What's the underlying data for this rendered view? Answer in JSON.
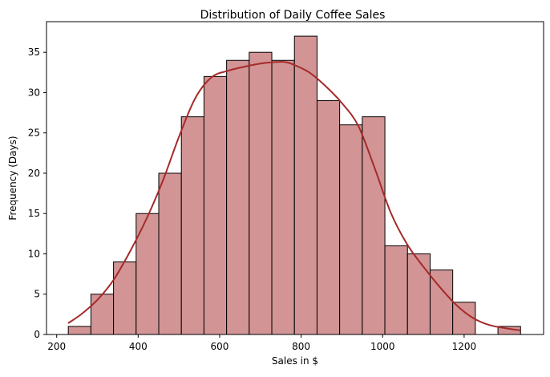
{
  "chart_data": {
    "type": "bar",
    "subtype": "histogram",
    "title": "Distribution of Daily Coffee Sales",
    "xlabel": "Sales in $",
    "ylabel": "Frequency (Days)",
    "xlim": [
      175,
      1395
    ],
    "ylim": [
      0,
      38.8
    ],
    "xticks": [
      200,
      400,
      600,
      800,
      1000,
      1200
    ],
    "yticks": [
      0,
      5,
      10,
      15,
      20,
      25,
      30,
      35
    ],
    "bin_edges": [
      228.5,
      284.0,
      339.5,
      395.0,
      450.5,
      506.0,
      561.5,
      617.0,
      672.5,
      728.0,
      783.5,
      839.0,
      894.5,
      950.0,
      1005.5,
      1061.0,
      1116.5,
      1172.0,
      1227.5,
      1283.0,
      1338.5
    ],
    "counts": [
      1,
      5,
      9,
      15,
      20,
      27,
      32,
      34,
      35,
      34,
      37,
      29,
      26,
      27,
      11,
      10,
      8,
      4,
      0,
      1
    ],
    "kde_curve": {
      "x": [
        228,
        260,
        300,
        340,
        380,
        420,
        460,
        500,
        540,
        580,
        620,
        660,
        700,
        740,
        760,
        780,
        820,
        860,
        900,
        940,
        980,
        1020,
        1060,
        1100,
        1140,
        1180,
        1220,
        1260,
        1300,
        1338
      ],
      "y": [
        1.4,
        2.5,
        4.3,
        6.8,
        10.3,
        14.3,
        19.0,
        24.5,
        29.3,
        31.9,
        32.7,
        33.2,
        33.6,
        33.8,
        33.8,
        33.5,
        32.5,
        30.8,
        28.7,
        25.9,
        20.7,
        15.1,
        11.2,
        8.4,
        5.9,
        3.7,
        2.1,
        1.2,
        0.8,
        0.5
      ]
    },
    "grid": false,
    "legend": "none",
    "colors": {
      "bar_fill": "#d29494",
      "bar_edge": "#000000",
      "kde_line": "#a52a2a"
    }
  }
}
